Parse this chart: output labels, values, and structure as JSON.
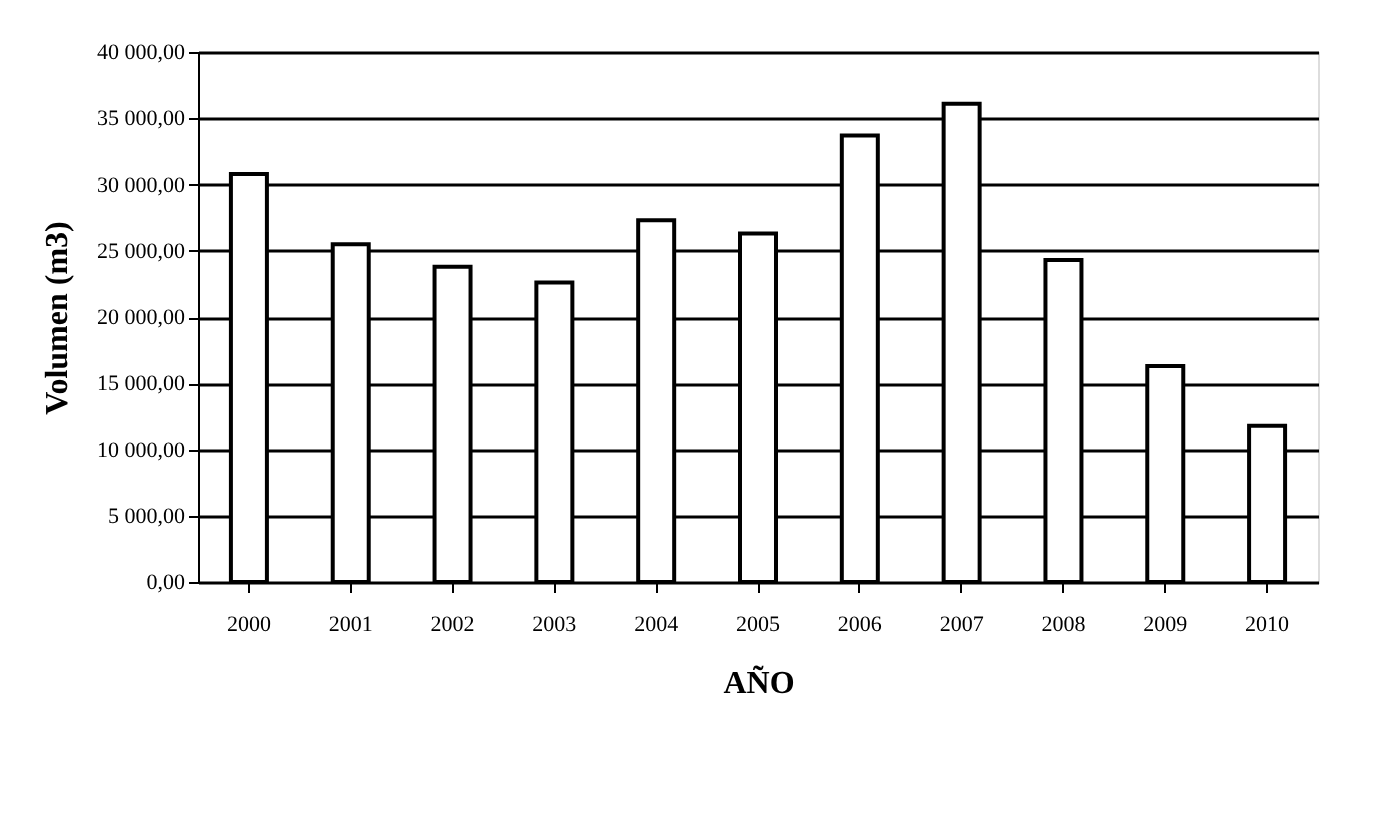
{
  "chart_data": {
    "type": "bar",
    "xlabel": "AÑO",
    "ylabel": "Volumen (m3)",
    "categories": [
      "2000",
      "2001",
      "2002",
      "2003",
      "2004",
      "2005",
      "2006",
      "2007",
      "2008",
      "2009",
      "2010"
    ],
    "values": [
      30800,
      25500,
      23800,
      22600,
      27300,
      26300,
      33700,
      36100,
      24300,
      16300,
      11800
    ],
    "color": "#ffffff",
    "ylim": [
      0,
      40000
    ],
    "yticks": [
      {
        "value": 0,
        "label": "0,00"
      },
      {
        "value": 5000,
        "label": "5 000,00"
      },
      {
        "value": 10000,
        "label": "10 000,00"
      },
      {
        "value": 15000,
        "label": "15 000,00"
      },
      {
        "value": 20000,
        "label": "20 000,00"
      },
      {
        "value": 25000,
        "label": "25 000,00"
      },
      {
        "value": 30000,
        "label": "30 000,00"
      },
      {
        "value": 35000,
        "label": "35 000,00"
      },
      {
        "value": 40000,
        "label": "40 000,00"
      }
    ],
    "grid": "y"
  }
}
